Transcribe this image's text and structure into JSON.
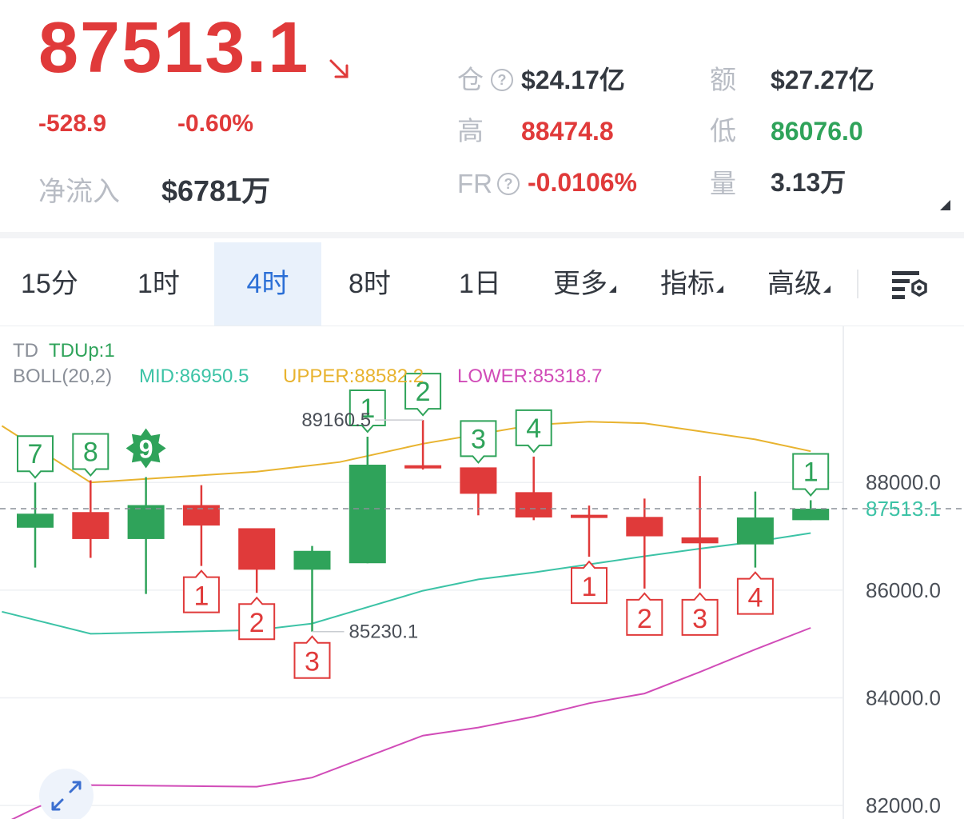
{
  "ticker": {
    "price": "87513.1",
    "change": "-528.9",
    "change_pct": "-0.60%",
    "net_inflow_label": "净流入",
    "net_inflow_value": "$6781万",
    "trend_icon": "arrow-down-right-icon",
    "colors": {
      "down": "#e03a3a",
      "up": "#2fa35a",
      "label": "#b8bcc4"
    }
  },
  "stats": {
    "open_interest_label": "仓",
    "open_interest_value": "$24.17亿",
    "turnover_label": "额",
    "turnover_value": "$27.27亿",
    "high_label": "高",
    "high_value": "88474.8",
    "low_label": "低",
    "low_value": "86076.0",
    "fr_label": "FR",
    "fr_value": "-0.0106%",
    "volume_label": "量",
    "volume_value": "3.13万",
    "help_icon_text": "?"
  },
  "tabs": [
    {
      "label": "15分"
    },
    {
      "label": "1时"
    },
    {
      "label": "4时",
      "active": true
    },
    {
      "label": "8时"
    },
    {
      "label": "1日"
    },
    {
      "label": "更多"
    },
    {
      "label": "指标"
    },
    {
      "label": "高级"
    }
  ],
  "chart_settings_icon": "chart-settings-icon",
  "expand_icon": "expand-icon",
  "legend": {
    "td_label": "TD",
    "td_value": "TDUp:1",
    "boll_label": "BOLL(20,2)",
    "mid": "MID:86950.5",
    "upper": "UPPER:88582.2",
    "lower": "LOWER:85318.7",
    "colors": {
      "mid": "#3cc3a6",
      "upper": "#e8b32f",
      "lower": "#d14cb8"
    }
  },
  "chart_data": {
    "type": "candlestick",
    "ylim": [
      81750,
      90900
    ],
    "y_ticks": [
      88000,
      86000,
      84000,
      82000
    ],
    "y_tick_labels": [
      "88000.0",
      "86000.0",
      "84000.0",
      "82000.0"
    ],
    "current_price": 87513.1,
    "current_price_label": "87513.1",
    "candles": [
      {
        "o": 87160,
        "h": 88000,
        "l": 86420,
        "c": 87420,
        "td": "7",
        "td_pos": "above",
        "td_color": "green"
      },
      {
        "o": 87450,
        "h": 88040,
        "l": 86600,
        "c": 86950,
        "td": "8",
        "td_pos": "above",
        "td_color": "green"
      },
      {
        "o": 86950,
        "h": 88100,
        "l": 85930,
        "c": 87580,
        "td": "9",
        "td_pos": "above",
        "td_color": "green",
        "td_star": true
      },
      {
        "o": 87580,
        "h": 87950,
        "l": 86450,
        "c": 87200,
        "td": "1",
        "td_pos": "below",
        "td_color": "red"
      },
      {
        "o": 87150,
        "h": 87150,
        "l": 85950,
        "c": 86380,
        "td": "2",
        "td_pos": "below",
        "td_color": "red"
      },
      {
        "o": 86380,
        "h": 86820,
        "l": 85230,
        "c": 86730,
        "td": "3",
        "td_pos": "below",
        "td_color": "red"
      },
      {
        "o": 86500,
        "h": 88850,
        "l": 86500,
        "c": 88330,
        "td": "1",
        "td_pos": "above",
        "td_color": "green"
      },
      {
        "o": 88320,
        "h": 89160,
        "l": 88240,
        "c": 88270,
        "td": "2",
        "td_pos": "above",
        "td_color": "green"
      },
      {
        "o": 88280,
        "h": 88280,
        "l": 87390,
        "c": 87790,
        "td": "3",
        "td_pos": "above",
        "td_color": "green"
      },
      {
        "o": 87820,
        "h": 88480,
        "l": 87300,
        "c": 87350,
        "td": "4",
        "td_pos": "above",
        "td_color": "green"
      },
      {
        "o": 87400,
        "h": 87570,
        "l": 86620,
        "c": 87350,
        "td": "1",
        "td_pos": "below",
        "td_color": "red"
      },
      {
        "o": 87360,
        "h": 87700,
        "l": 86030,
        "c": 87000,
        "td": "2",
        "td_pos": "below",
        "td_color": "red"
      },
      {
        "o": 86980,
        "h": 88120,
        "l": 86030,
        "c": 86870,
        "td": "3",
        "td_pos": "below",
        "td_color": "red"
      },
      {
        "o": 86850,
        "h": 87830,
        "l": 86420,
        "c": 87350,
        "td": "4",
        "td_pos": "below",
        "td_color": "red"
      },
      {
        "o": 87300,
        "h": 87670,
        "l": 87300,
        "c": 87513.1,
        "td": "1",
        "td_pos": "above",
        "td_color": "green"
      }
    ],
    "annotations": [
      {
        "text": "89160.5",
        "candle": 7,
        "at": "high"
      },
      {
        "text": "85230.1",
        "candle": 5,
        "at": "low"
      }
    ],
    "boll_upper": [
      {
        "x": -0.6,
        "y": 89050
      },
      {
        "x": 1,
        "y": 88000
      },
      {
        "x": 4,
        "y": 88200
      },
      {
        "x": 5.5,
        "y": 88380
      },
      {
        "x": 7,
        "y": 88720
      },
      {
        "x": 9,
        "y": 89070
      },
      {
        "x": 10,
        "y": 89130
      },
      {
        "x": 11,
        "y": 89100
      },
      {
        "x": 12,
        "y": 88950
      },
      {
        "x": 13,
        "y": 88800
      },
      {
        "x": 14,
        "y": 88580
      }
    ],
    "boll_mid": [
      {
        "x": -0.6,
        "y": 85600
      },
      {
        "x": 1,
        "y": 85190
      },
      {
        "x": 4,
        "y": 85260
      },
      {
        "x": 5,
        "y": 85380
      },
      {
        "x": 7,
        "y": 85990
      },
      {
        "x": 8,
        "y": 86200
      },
      {
        "x": 9,
        "y": 86330
      },
      {
        "x": 10,
        "y": 86480
      },
      {
        "x": 11,
        "y": 86630
      },
      {
        "x": 12,
        "y": 86770
      },
      {
        "x": 13,
        "y": 86900
      },
      {
        "x": 14,
        "y": 87060
      }
    ],
    "boll_lower": [
      {
        "x": -0.6,
        "y": 81650
      },
      {
        "x": 0,
        "y": 81950
      },
      {
        "x": 1,
        "y": 82380
      },
      {
        "x": 4,
        "y": 82350
      },
      {
        "x": 5,
        "y": 82520
      },
      {
        "x": 7,
        "y": 83300
      },
      {
        "x": 8,
        "y": 83450
      },
      {
        "x": 9,
        "y": 83650
      },
      {
        "x": 10,
        "y": 83900
      },
      {
        "x": 11,
        "y": 84080
      },
      {
        "x": 12,
        "y": 84480
      },
      {
        "x": 13,
        "y": 84900
      },
      {
        "x": 14,
        "y": 85300
      }
    ]
  }
}
